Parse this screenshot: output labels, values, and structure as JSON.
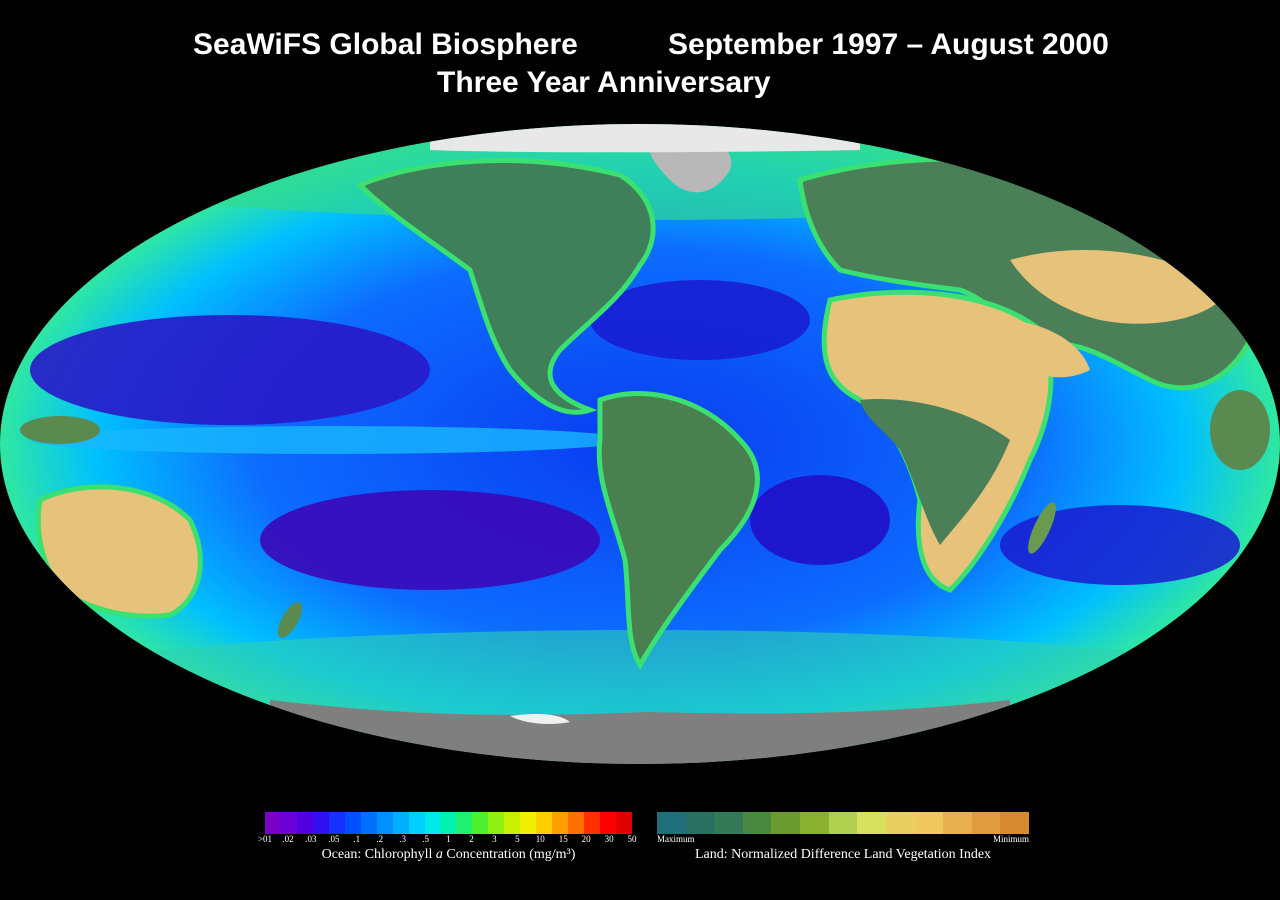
{
  "title": {
    "left": "SeaWiFS Global Biosphere",
    "right": "September 1997 – August 2000",
    "subtitle": "Three Year Anniversary"
  },
  "colors": {
    "background": "#000000",
    "ocean_deep": "#1a1fd6",
    "ocean_oligotrophic": "#3a00b0",
    "ocean_mid": "#00b4ff",
    "ocean_productive": "#2fe87a",
    "land_veg_max": "#2f6f5a",
    "land_veg_min": "#e6c27a",
    "ice": "#e8e8e8",
    "antarctica": "#7f7f7f"
  },
  "ocean_legend": {
    "caption_prefix": "Ocean:  Chlorophyll ",
    "caption_italic": "a",
    "caption_suffix": " Concentration (mg/m³)",
    "ticks": [
      ">01",
      ".02",
      ".03",
      ".05",
      ".1",
      ".2",
      ".3",
      ".5",
      "1",
      "2",
      "3",
      "5",
      "10",
      "15",
      "20",
      "30",
      "50"
    ],
    "colors": [
      "#7a00c8",
      "#6a00d8",
      "#5000e0",
      "#3010f0",
      "#1530ff",
      "#0050ff",
      "#0070ff",
      "#0090ff",
      "#00b0ff",
      "#00d0ff",
      "#00e8e8",
      "#00f0b0",
      "#20f070",
      "#50f030",
      "#90f010",
      "#c8f000",
      "#f0f000",
      "#ffd000",
      "#ffa000",
      "#ff7000",
      "#ff3000",
      "#ff0000",
      "#e00000"
    ]
  },
  "land_legend": {
    "caption": "Land:  Normalized Difference Land Vegetation Index",
    "max_label": "Maximum",
    "min_label": "Minimum",
    "colors": [
      "#1e6f7a",
      "#2a7060",
      "#357a58",
      "#4a8a40",
      "#6a9a30",
      "#8ab030",
      "#b0d050",
      "#d8e060",
      "#e8d060",
      "#f0c860",
      "#e8b050",
      "#e09a40",
      "#d88a30"
    ]
  }
}
